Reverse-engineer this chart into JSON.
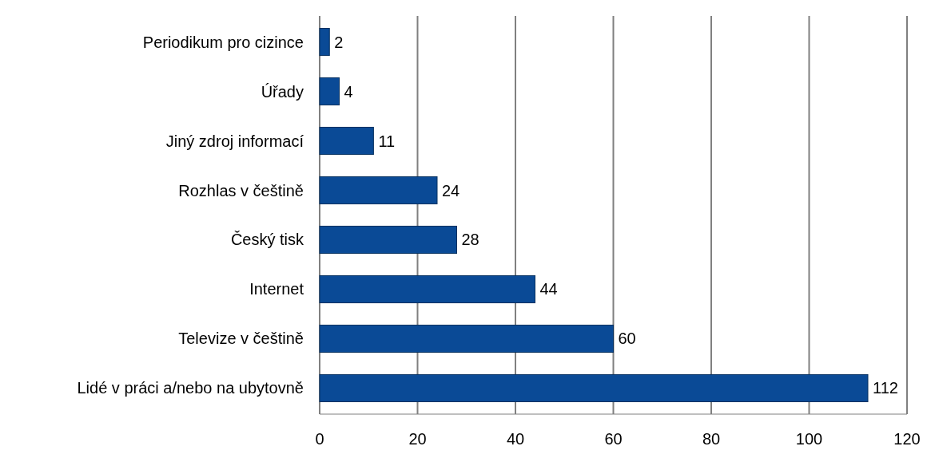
{
  "chart_data": {
    "type": "bar",
    "orientation": "horizontal",
    "categories": [
      "Periodikum pro cizince",
      "Úřady",
      "Jiný zdroj informací",
      "Rozhlas v češtině",
      "Český tisk",
      "Internet",
      "Televize v češtině",
      "Lidé v práci a/nebo na ubytovně"
    ],
    "values": [
      2,
      4,
      11,
      24,
      28,
      44,
      60,
      112
    ],
    "color": "#0a4a96",
    "xlim": [
      0,
      120
    ],
    "xticks": [
      0,
      20,
      40,
      60,
      80,
      100,
      120
    ],
    "grid": "x",
    "data_labels": true
  }
}
